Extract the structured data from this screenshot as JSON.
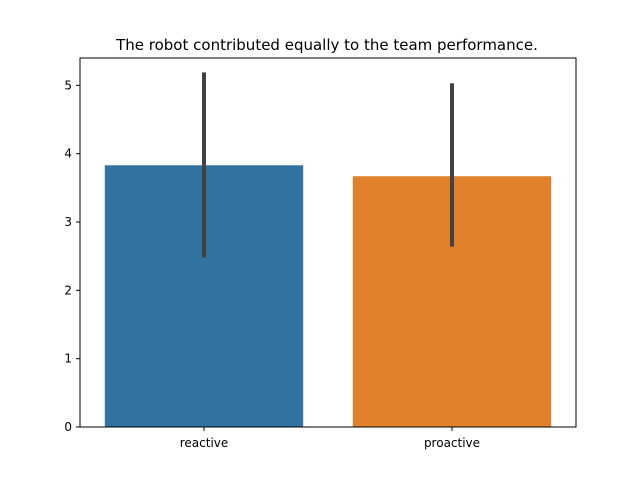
{
  "chart_data": {
    "type": "bar",
    "title": "The robot contributed equally to the team performance.",
    "xlabel": "",
    "ylabel": "",
    "categories": [
      "reactive",
      "proactive"
    ],
    "values": [
      3.83,
      3.67
    ],
    "error_low": [
      2.48,
      2.64
    ],
    "error_high": [
      5.19,
      5.03
    ],
    "colors": [
      "#3274a1",
      "#e1812c"
    ],
    "error_color": "#424242",
    "ylim": [
      0,
      5.4
    ],
    "yticks": [
      0,
      1,
      2,
      3,
      4,
      5
    ],
    "grid": false,
    "legend": "none"
  }
}
